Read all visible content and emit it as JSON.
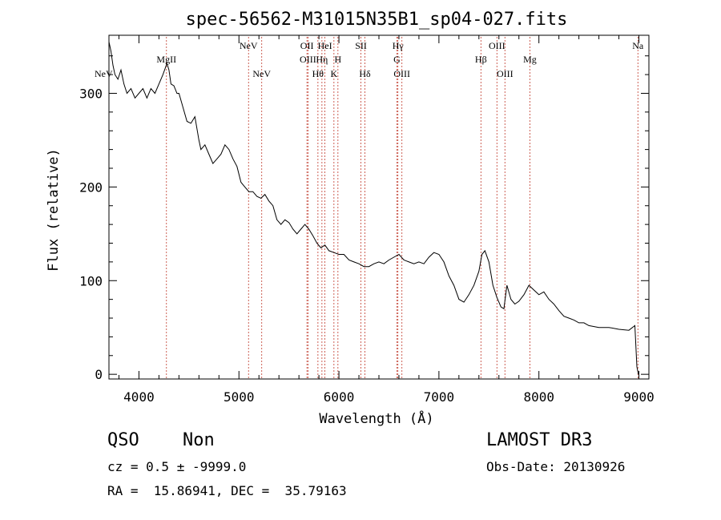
{
  "chart_data": {
    "type": "line",
    "title": "spec-56562-M31015N35B1_sp04-027.fits",
    "xlabel": "Wavelength (Å)",
    "ylabel": "Flux (relative)",
    "xlim": [
      3700,
      9100
    ],
    "ylim": [
      -5,
      362
    ],
    "xticks": [
      4000,
      5000,
      6000,
      7000,
      8000,
      9000
    ],
    "xtick_labels": [
      "4000",
      "5000",
      "6000",
      "7000",
      "8000",
      "9000"
    ],
    "yticks": [
      0,
      100,
      200,
      300
    ],
    "ytick_labels": [
      "0",
      "100",
      "200",
      "300"
    ],
    "series": [
      {
        "name": "flux",
        "x": [
          3700,
          3720,
          3740,
          3760,
          3790,
          3820,
          3850,
          3880,
          3920,
          3960,
          4000,
          4040,
          4080,
          4120,
          4160,
          4200,
          4240,
          4280,
          4300,
          4320,
          4350,
          4380,
          4400,
          4440,
          4480,
          4520,
          4560,
          4600,
          4620,
          4660,
          4700,
          4740,
          4780,
          4820,
          4860,
          4900,
          4940,
          4980,
          5020,
          5060,
          5100,
          5140,
          5180,
          5220,
          5260,
          5300,
          5340,
          5380,
          5420,
          5460,
          5500,
          5540,
          5580,
          5620,
          5660,
          5700,
          5740,
          5780,
          5820,
          5860,
          5900,
          5950,
          6000,
          6050,
          6100,
          6150,
          6200,
          6250,
          6300,
          6350,
          6400,
          6450,
          6500,
          6550,
          6600,
          6650,
          6700,
          6750,
          6800,
          6850,
          6900,
          6950,
          7000,
          7050,
          7100,
          7150,
          7200,
          7250,
          7300,
          7350,
          7400,
          7430,
          7460,
          7500,
          7540,
          7580,
          7620,
          7650,
          7680,
          7720,
          7760,
          7800,
          7850,
          7900,
          7950,
          8000,
          8050,
          8100,
          8150,
          8200,
          8250,
          8300,
          8350,
          8400,
          8450,
          8500,
          8600,
          8700,
          8800,
          8900,
          8960,
          8980,
          8995
        ],
        "y": [
          355,
          345,
          330,
          320,
          315,
          325,
          310,
          300,
          305,
          295,
          300,
          305,
          295,
          305,
          300,
          310,
          320,
          332,
          325,
          310,
          308,
          300,
          300,
          285,
          270,
          268,
          275,
          250,
          240,
          245,
          235,
          225,
          230,
          235,
          245,
          240,
          230,
          222,
          205,
          200,
          195,
          195,
          190,
          188,
          192,
          185,
          180,
          165,
          160,
          165,
          162,
          155,
          150,
          155,
          160,
          155,
          148,
          140,
          135,
          138,
          132,
          130,
          128,
          128,
          122,
          120,
          118,
          115,
          115,
          118,
          120,
          118,
          122,
          125,
          128,
          122,
          120,
          118,
          120,
          118,
          125,
          130,
          128,
          120,
          105,
          95,
          80,
          77,
          85,
          95,
          110,
          128,
          132,
          120,
          95,
          82,
          72,
          70,
          95,
          80,
          75,
          78,
          85,
          95,
          90,
          85,
          88,
          80,
          75,
          68,
          62,
          60,
          58,
          55,
          55,
          52,
          50,
          50,
          48,
          47,
          52,
          8,
          0
        ]
      }
    ],
    "lines": [
      {
        "label": "NeV",
        "x": 3426,
        "row": 2
      },
      {
        "label": "MgII",
        "x": 4275,
        "row": 1
      },
      {
        "label": "NeV",
        "x": 5096,
        "row": 0
      },
      {
        "label": "NeV",
        "x": 5228,
        "row": 2
      },
      {
        "label": "OII",
        "x": 5680,
        "row": 0
      },
      {
        "label": "OIII",
        "x": 5690,
        "row": 1
      },
      {
        "label": "Hθ",
        "x": 5790,
        "row": 2
      },
      {
        "label": "HeI",
        "x": 5860,
        "row": 0
      },
      {
        "label": "Hη",
        "x": 5830,
        "row": 1
      },
      {
        "label": "H",
        "x": 5990,
        "row": 1
      },
      {
        "label": "K",
        "x": 5950,
        "row": 2
      },
      {
        "label": "SII",
        "x": 6220,
        "row": 0
      },
      {
        "label": "Hδ",
        "x": 6260,
        "row": 2
      },
      {
        "label": "Hγ",
        "x": 6590,
        "row": 0
      },
      {
        "label": "G",
        "x": 6580,
        "row": 1
      },
      {
        "label": "OIII",
        "x": 6630,
        "row": 2
      },
      {
        "label": "Hβ",
        "x": 7420,
        "row": 1
      },
      {
        "label": "OIII",
        "x": 7580,
        "row": 0
      },
      {
        "label": "OIII",
        "x": 7660,
        "row": 2
      },
      {
        "label": "Mg",
        "x": 7910,
        "row": 1
      },
      {
        "label": "Na",
        "x": 8990,
        "row": 0
      }
    ]
  },
  "footer": {
    "class": "QSO",
    "subclass": "Non",
    "cz_line": "cz = 0.5 ± -9999.0",
    "radec_line": "RA =  15.86941, DEC =  35.79163",
    "survey": "LAMOST DR3",
    "obs_date": "Obs-Date: 20130926"
  }
}
